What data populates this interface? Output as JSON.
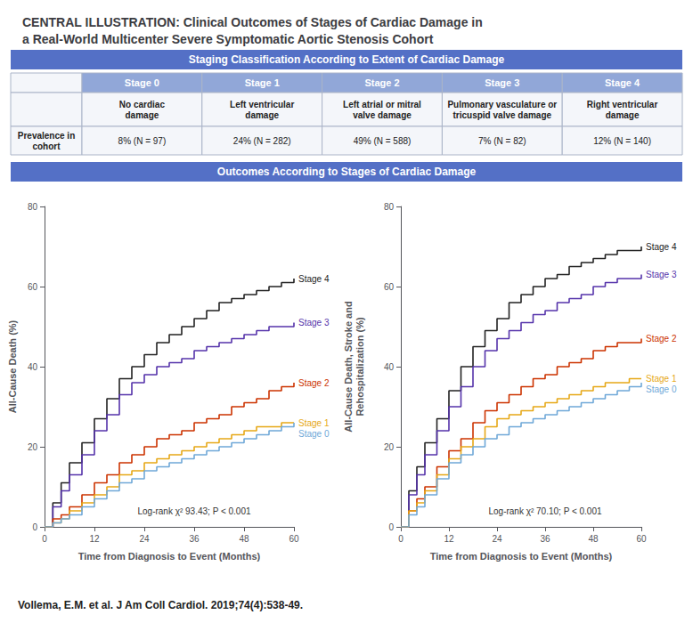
{
  "title": "CENTRAL ILLUSTRATION: Clinical Outcomes of Stages of Cardiac Damage in\na Real-World Multicenter Severe Symptomatic Aortic Stenosis Cohort",
  "sections": [
    "Staging Classification According to Extent of Cardiac Damage",
    "Outcomes According to Stages of Cardiac Damage"
  ],
  "table": {
    "columns": [
      "Stage 0",
      "Stage 1",
      "Stage 2",
      "Stage 3",
      "Stage 4"
    ],
    "rows": [
      {
        "values": [
          "No cardiac\ndamage",
          "Left ventricular\ndamage",
          "Left atrial or mitral\nvalve damage",
          "Pulmonary vasculature or\ntricuspid valve damage",
          "Right ventricular\ndamage"
        ]
      },
      {
        "label": "Prevalence in\ncohort",
        "values": [
          "8% (N = 97)",
          "24% (N = 282)",
          "49% (N = 588)",
          "7% (N = 82)",
          "12% (N = 140)"
        ]
      }
    ]
  },
  "chart_data": [
    {
      "type": "line",
      "ylabel": "All-Cause Death (%)",
      "xlabel": "Time from Diagnosis to Event (Months)",
      "annotations": [
        "Log-rank χ² 93.43; P < 0.001"
      ],
      "x": [
        0,
        2,
        4,
        6,
        9,
        12,
        15,
        18,
        21,
        24,
        27,
        30,
        33,
        36,
        39,
        42,
        45,
        48,
        51,
        54,
        57,
        60
      ],
      "series": [
        {
          "name": "Stage 4",
          "color": "#222222",
          "values": [
            0,
            6,
            11,
            16,
            21,
            27,
            32,
            37,
            40,
            43,
            46,
            48,
            50,
            52,
            54,
            56,
            57,
            58,
            59,
            60,
            61,
            62
          ]
        },
        {
          "name": "Stage 3",
          "color": "#5533aa",
          "values": [
            0,
            5,
            9,
            13,
            18,
            24,
            28,
            33,
            36,
            38,
            40,
            41,
            42,
            44,
            45,
            46,
            47,
            48,
            49,
            50,
            50,
            51
          ]
        },
        {
          "name": "Stage 2",
          "color": "#cc3300",
          "values": [
            0,
            2,
            3,
            5,
            8,
            11,
            13,
            16,
            18,
            20,
            22,
            23,
            24,
            26,
            27,
            28,
            30,
            31,
            32,
            34,
            35,
            36
          ]
        },
        {
          "name": "Stage 1",
          "color": "#e6a817",
          "values": [
            0,
            1,
            2,
            4,
            6,
            8,
            10,
            13,
            14,
            16,
            17,
            18,
            19,
            20,
            21,
            22,
            23,
            24,
            25,
            25,
            26,
            26
          ]
        },
        {
          "name": "Stage 0",
          "color": "#6fa8d8",
          "values": [
            0,
            1,
            2,
            3,
            5,
            7,
            9,
            11,
            12,
            14,
            15,
            16,
            17,
            18,
            19,
            20,
            21,
            22,
            23,
            24,
            25,
            26
          ]
        }
      ],
      "xlim": [
        0,
        60
      ],
      "ylim": [
        0,
        80
      ],
      "xticks": [
        0,
        12,
        24,
        36,
        48,
        60
      ],
      "yticks": [
        0,
        20,
        40,
        60,
        80
      ],
      "grid": false
    },
    {
      "type": "line",
      "ylabel": "All-Cause Death, Stroke and\nRehospitalization (%)",
      "xlabel": "Time from Diagnosis to Event (Months)",
      "annotations": [
        "Log-rank χ² 70.10; P < 0.001"
      ],
      "x": [
        0,
        2,
        4,
        6,
        9,
        12,
        15,
        18,
        21,
        24,
        27,
        30,
        33,
        36,
        39,
        42,
        45,
        48,
        51,
        54,
        57,
        60
      ],
      "series": [
        {
          "name": "Stage 4",
          "color": "#222222",
          "values": [
            0,
            9,
            15,
            21,
            27,
            34,
            40,
            45,
            49,
            52,
            56,
            58,
            60,
            62,
            63,
            65,
            66,
            67,
            68,
            69,
            69,
            70
          ]
        },
        {
          "name": "Stage 3",
          "color": "#5533aa",
          "values": [
            0,
            8,
            13,
            18,
            24,
            30,
            35,
            40,
            44,
            47,
            49,
            51,
            53,
            54,
            56,
            57,
            58,
            60,
            61,
            62,
            62,
            63
          ]
        },
        {
          "name": "Stage 2",
          "color": "#cc3300",
          "values": [
            0,
            4,
            7,
            10,
            15,
            19,
            22,
            26,
            29,
            31,
            33,
            35,
            37,
            38,
            40,
            41,
            42,
            44,
            45,
            46,
            46,
            47
          ]
        },
        {
          "name": "Stage 1",
          "color": "#e6a817",
          "values": [
            0,
            4,
            6,
            9,
            13,
            17,
            20,
            22,
            25,
            27,
            28,
            29,
            30,
            31,
            32,
            33,
            34,
            35,
            36,
            36,
            37,
            37
          ]
        },
        {
          "name": "Stage 0",
          "color": "#6fa8d8",
          "values": [
            0,
            3,
            5,
            8,
            12,
            16,
            18,
            20,
            22,
            23,
            25,
            26,
            27,
            28,
            29,
            30,
            31,
            32,
            33,
            34,
            35,
            36
          ]
        }
      ],
      "xlim": [
        0,
        60
      ],
      "ylim": [
        0,
        80
      ],
      "xticks": [
        0,
        12,
        24,
        36,
        48,
        60
      ],
      "yticks": [
        0,
        20,
        40,
        60,
        80
      ],
      "grid": false
    }
  ],
  "citation": "Vollema, E.M. et al. J Am Coll Cardiol. 2019;74(4):538-49."
}
